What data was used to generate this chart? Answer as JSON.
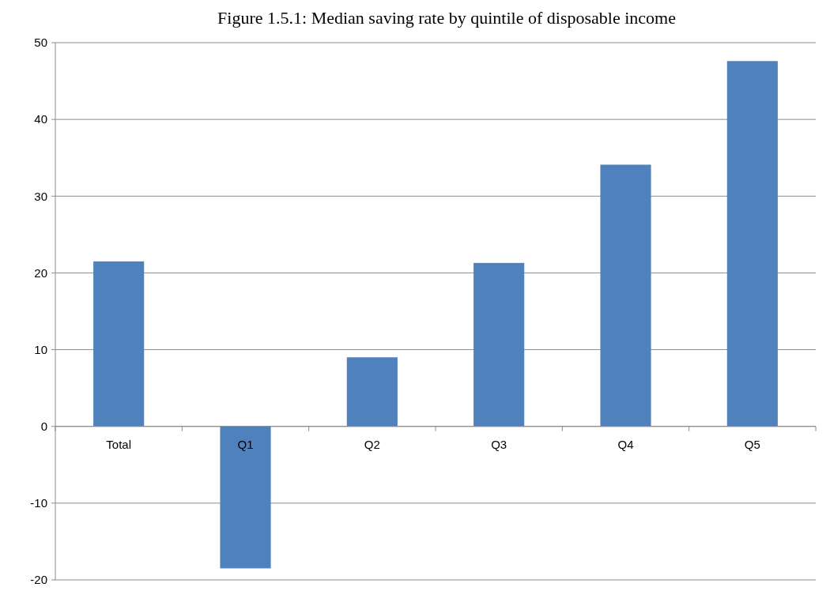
{
  "chart_data": {
    "type": "bar",
    "title": "Figure 1.5.1: Median saving rate by quintile of disposable income",
    "categories": [
      "Total",
      "Q1",
      "Q2",
      "Q3",
      "Q4",
      "Q5"
    ],
    "values": [
      21.5,
      -18.5,
      9.0,
      21.3,
      34.1,
      47.6
    ],
    "color": "#4f81bd",
    "ylim": [
      -20,
      50
    ],
    "yticks": [
      -20,
      -10,
      0,
      10,
      20,
      30,
      40,
      50
    ],
    "grid": "y"
  }
}
